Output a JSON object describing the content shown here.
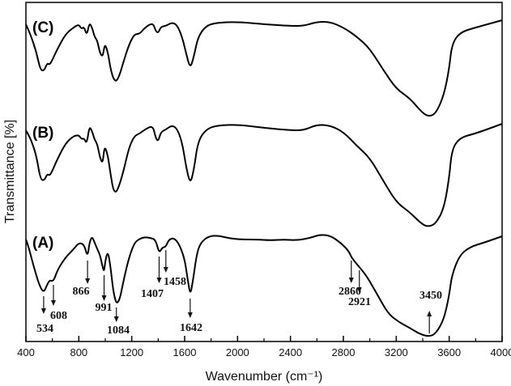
{
  "chart_data": {
    "type": "line",
    "title": "",
    "xlabel": "Wavenumber (cm⁻¹)",
    "ylabel": "Transmittance [%]",
    "xlim": [
      400,
      4000
    ],
    "x_reversed": false,
    "x_ticks": [
      400,
      800,
      1200,
      1600,
      2000,
      2400,
      2800,
      3200,
      3600,
      4000
    ],
    "x_minor_ticks": [
      600,
      1000,
      1400,
      1800,
      2200,
      2600,
      3000,
      3400,
      3800
    ],
    "y_ticks": [],
    "grid": false,
    "legend": "none (inline trace labels)",
    "series": [
      {
        "name": "(C)",
        "note": "Stacked offset trace, y in pixel units (lower = lower transmittance)",
        "points": [
          [
            400,
            30
          ],
          [
            440,
            45
          ],
          [
            480,
            65
          ],
          [
            510,
            87
          ],
          [
            540,
            87
          ],
          [
            560,
            78
          ],
          [
            580,
            80
          ],
          [
            600,
            74
          ],
          [
            640,
            60
          ],
          [
            700,
            42
          ],
          [
            760,
            34
          ],
          [
            800,
            30
          ],
          [
            820,
            36
          ],
          [
            840,
            33
          ],
          [
            860,
            44
          ],
          [
            880,
            28
          ],
          [
            900,
            34
          ],
          [
            920,
            46
          ],
          [
            940,
            50
          ],
          [
            960,
            66
          ],
          [
            980,
            70
          ],
          [
            990,
            60
          ],
          [
            1000,
            55
          ],
          [
            1020,
            65
          ],
          [
            1040,
            85
          ],
          [
            1060,
            97
          ],
          [
            1084,
            101
          ],
          [
            1110,
            92
          ],
          [
            1140,
            75
          ],
          [
            1180,
            55
          ],
          [
            1220,
            42
          ],
          [
            1260,
            42
          ],
          [
            1300,
            34
          ],
          [
            1360,
            28
          ],
          [
            1380,
            38
          ],
          [
            1400,
            41
          ],
          [
            1420,
            33
          ],
          [
            1460,
            32
          ],
          [
            1500,
            28
          ],
          [
            1540,
            30
          ],
          [
            1580,
            45
          ],
          [
            1610,
            65
          ],
          [
            1642,
            85
          ],
          [
            1670,
            70
          ],
          [
            1700,
            46
          ],
          [
            1760,
            32
          ],
          [
            1840,
            28
          ],
          [
            2000,
            27
          ],
          [
            2200,
            30
          ],
          [
            2400,
            32
          ],
          [
            2500,
            32
          ],
          [
            2600,
            27
          ],
          [
            2700,
            27
          ],
          [
            2800,
            34
          ],
          [
            2900,
            45
          ],
          [
            3000,
            60
          ],
          [
            3100,
            86
          ],
          [
            3200,
            110
          ],
          [
            3300,
            121
          ],
          [
            3400,
            140
          ],
          [
            3450,
            144
          ],
          [
            3500,
            140
          ],
          [
            3560,
            118
          ],
          [
            3600,
            85
          ],
          [
            3620,
            55
          ],
          [
            3680,
            40
          ],
          [
            3800,
            34
          ],
          [
            4000,
            25
          ]
        ]
      },
      {
        "name": "(B)",
        "points": [
          [
            400,
            161
          ],
          [
            440,
            173
          ],
          [
            480,
            193
          ],
          [
            510,
            222
          ],
          [
            540,
            223
          ],
          [
            560,
            215
          ],
          [
            580,
            217
          ],
          [
            600,
            211
          ],
          [
            640,
            196
          ],
          [
            700,
            177
          ],
          [
            760,
            168
          ],
          [
            800,
            167
          ],
          [
            820,
            172
          ],
          [
            840,
            171
          ],
          [
            860,
            178
          ],
          [
            880,
            156
          ],
          [
            900,
            162
          ],
          [
            920,
            173
          ],
          [
            940,
            178
          ],
          [
            960,
            195
          ],
          [
            980,
            202
          ],
          [
            990,
            186
          ],
          [
            1000,
            182
          ],
          [
            1020,
            193
          ],
          [
            1040,
            215
          ],
          [
            1060,
            235
          ],
          [
            1084,
            238
          ],
          [
            1110,
            227
          ],
          [
            1140,
            210
          ],
          [
            1180,
            182
          ],
          [
            1220,
            168
          ],
          [
            1260,
            165
          ],
          [
            1300,
            160
          ],
          [
            1360,
            155
          ],
          [
            1380,
            170
          ],
          [
            1400,
            175
          ],
          [
            1420,
            163
          ],
          [
            1460,
            160
          ],
          [
            1500,
            155
          ],
          [
            1540,
            158
          ],
          [
            1580,
            175
          ],
          [
            1610,
            205
          ],
          [
            1642,
            228
          ],
          [
            1670,
            210
          ],
          [
            1700,
            175
          ],
          [
            1760,
            160
          ],
          [
            1840,
            155
          ],
          [
            2000,
            154
          ],
          [
            2200,
            158
          ],
          [
            2400,
            161
          ],
          [
            2500,
            161
          ],
          [
            2600,
            154
          ],
          [
            2700,
            155
          ],
          [
            2800,
            163
          ],
          [
            2900,
            180
          ],
          [
            3000,
            195
          ],
          [
            3100,
            223
          ],
          [
            3200,
            250
          ],
          [
            3300,
            262
          ],
          [
            3400,
            278
          ],
          [
            3450,
            280
          ],
          [
            3500,
            276
          ],
          [
            3560,
            258
          ],
          [
            3600,
            220
          ],
          [
            3620,
            185
          ],
          [
            3680,
            170
          ],
          [
            3800,
            165
          ],
          [
            4000,
            153
          ]
        ]
      },
      {
        "name": "(A)",
        "points": [
          [
            400,
            296
          ],
          [
            420,
            305
          ],
          [
            460,
            330
          ],
          [
            500,
            352
          ],
          [
            534,
            362
          ],
          [
            560,
            352
          ],
          [
            580,
            346
          ],
          [
            608,
            348
          ],
          [
            640,
            333
          ],
          [
            700,
            318
          ],
          [
            760,
            308
          ],
          [
            800,
            300
          ],
          [
            840,
            302
          ],
          [
            866,
            318
          ],
          [
            880,
            300
          ],
          [
            900,
            292
          ],
          [
            920,
            300
          ],
          [
            940,
            308
          ],
          [
            960,
            315
          ],
          [
            980,
            330
          ],
          [
            991,
            336
          ],
          [
            1000,
            322
          ],
          [
            1020,
            310
          ],
          [
            1040,
            330
          ],
          [
            1060,
            360
          ],
          [
            1084,
            376
          ],
          [
            1110,
            370
          ],
          [
            1140,
            345
          ],
          [
            1180,
            318
          ],
          [
            1220,
            300
          ],
          [
            1260,
            295
          ],
          [
            1300,
            293
          ],
          [
            1340,
            294
          ],
          [
            1380,
            296
          ],
          [
            1407,
            313
          ],
          [
            1430,
            306
          ],
          [
            1458,
            305
          ],
          [
            1480,
            296
          ],
          [
            1520,
            294
          ],
          [
            1560,
            302
          ],
          [
            1600,
            320
          ],
          [
            1620,
            342
          ],
          [
            1642,
            365
          ],
          [
            1660,
            350
          ],
          [
            1690,
            315
          ],
          [
            1720,
            300
          ],
          [
            1780,
            292
          ],
          [
            1850,
            291
          ],
          [
            1950,
            295
          ],
          [
            2050,
            296
          ],
          [
            2150,
            296
          ],
          [
            2250,
            297
          ],
          [
            2350,
            296
          ],
          [
            2450,
            297
          ],
          [
            2550,
            294
          ],
          [
            2620,
            290
          ],
          [
            2700,
            291
          ],
          [
            2780,
            300
          ],
          [
            2840,
            310
          ],
          [
            2860,
            318
          ],
          [
            2900,
            326
          ],
          [
            2921,
            330
          ],
          [
            2980,
            342
          ],
          [
            3060,
            365
          ],
          [
            3140,
            388
          ],
          [
            3220,
            398
          ],
          [
            3300,
            405
          ],
          [
            3380,
            413
          ],
          [
            3450,
            416
          ],
          [
            3500,
            412
          ],
          [
            3560,
            395
          ],
          [
            3600,
            365
          ],
          [
            3620,
            340
          ],
          [
            3680,
            315
          ],
          [
            3760,
            305
          ],
          [
            3860,
            300
          ],
          [
            4000,
            292
          ]
        ]
      }
    ],
    "annotations": [
      {
        "label": "534",
        "x": 534,
        "series": "(A)",
        "arrow": "down"
      },
      {
        "label": "608",
        "x": 608,
        "series": "(A)",
        "arrow": "down"
      },
      {
        "label": "866",
        "x": 866,
        "series": "(A)",
        "arrow": "down"
      },
      {
        "label": "991",
        "x": 991,
        "series": "(A)",
        "arrow": "down"
      },
      {
        "label": "1084",
        "x": 1084,
        "series": "(A)",
        "arrow": "down"
      },
      {
        "label": "1407",
        "x": 1407,
        "series": "(A)",
        "arrow": "down"
      },
      {
        "label": "1458",
        "x": 1458,
        "series": "(A)",
        "arrow": "down"
      },
      {
        "label": "1642",
        "x": 1642,
        "series": "(A)",
        "arrow": "down"
      },
      {
        "label": "2860",
        "x": 2860,
        "series": "(A)",
        "arrow": "down"
      },
      {
        "label": "2921",
        "x": 2921,
        "series": "(A)",
        "arrow": "down"
      },
      {
        "label": "3450",
        "x": 3450,
        "series": "(A)",
        "arrow": "up"
      }
    ]
  },
  "labels": {
    "xlabel": "Wavenumber (cm⁻¹)",
    "ylabel": "Transmittance [%]",
    "trace_c": "(C)",
    "trace_b": "(B)",
    "trace_a": "(A)"
  },
  "colors": {
    "line": "#000000",
    "background": "#ffffff",
    "axis": "#000000"
  }
}
